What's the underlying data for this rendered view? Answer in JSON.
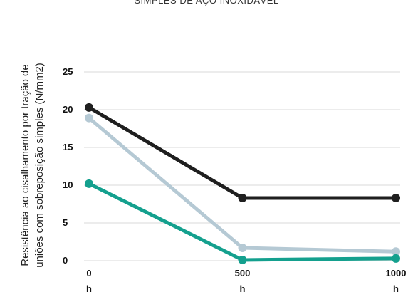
{
  "chart_data": {
    "type": "line",
    "title": "SIMPLES DE AÇO INOXIDÁVEL",
    "ylabel_lines": [
      "Resistência ao cisalhamento por tração de",
      "uniões com sobreposição simples (N/mm2)"
    ],
    "xlabel": "",
    "categories": [
      {
        "value": "0",
        "unit": "h"
      },
      {
        "value": "500",
        "unit": "h"
      },
      {
        "value": "1000",
        "unit": "h"
      }
    ],
    "x": [
      0,
      500,
      1000
    ],
    "ylim": [
      0,
      25
    ],
    "yticks": [
      "0",
      "5",
      "10",
      "15",
      "20",
      "25"
    ],
    "grid": true,
    "series": [
      {
        "values": [
          20.3,
          8.3,
          8.3
        ],
        "color": "#1f1f1f"
      },
      {
        "values": [
          18.9,
          1.7,
          1.2
        ],
        "color": "#b5c9d4"
      },
      {
        "values": [
          10.2,
          0.1,
          0.3
        ],
        "color": "#14a08e"
      }
    ]
  }
}
